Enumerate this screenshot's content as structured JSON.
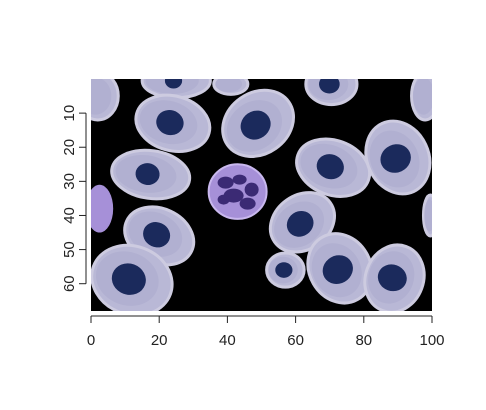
{
  "chart_data": {
    "type": "image",
    "title": "",
    "xlabel": "",
    "ylabel": "",
    "xlim": [
      0,
      100
    ],
    "ylim": [
      0,
      68
    ],
    "y_reversed": true,
    "x_ticks": [
      "0",
      "20",
      "40",
      "60",
      "80",
      "100"
    ],
    "y_ticks": [
      "10",
      "20",
      "30",
      "40",
      "50",
      "60"
    ],
    "colors": {
      "background": "#000000",
      "cell_fill": "#b9b8d6",
      "cell_edge": "#cdcbe0",
      "nucleus": "#1b2a5c",
      "leukocyte_fill": "#a690d8",
      "leukocyte_nucleus": "#3b2a74",
      "axis": "#222222"
    },
    "image_content": {
      "description_type": "blood smear micrograph",
      "cells": [
        {
          "x": 25,
          "y": 0.5,
          "rx": 10,
          "ry": 5,
          "rot": 0,
          "nucleus": true
        },
        {
          "x": 41,
          "y": 1.5,
          "rx": 5,
          "ry": 3,
          "rot": 0,
          "nucleus": false
        },
        {
          "x": 70.5,
          "y": 1.5,
          "rx": 7.5,
          "ry": 6,
          "rot": 0,
          "nucleus": true
        },
        {
          "x": 98,
          "y": 5,
          "rx": 4,
          "ry": 7,
          "rot": 0,
          "nucleus": false
        },
        {
          "x": 2,
          "y": 5,
          "rx": 6,
          "ry": 7,
          "rot": 0,
          "nucleus": false
        },
        {
          "x": 24,
          "y": 13,
          "rx": 11,
          "ry": 8,
          "rot": 15,
          "nucleus": true
        },
        {
          "x": 49,
          "y": 13,
          "rx": 11,
          "ry": 9,
          "rot": -35,
          "nucleus": true
        },
        {
          "x": 17.5,
          "y": 28,
          "rx": 11.5,
          "ry": 7,
          "rot": 8,
          "nucleus": true
        },
        {
          "x": 71,
          "y": 26,
          "rx": 11,
          "ry": 8,
          "rot": 20,
          "nucleus": true
        },
        {
          "x": 90,
          "y": 23,
          "rx": 9,
          "ry": 11,
          "rot": -25,
          "nucleus": true
        },
        {
          "x": 62,
          "y": 42,
          "rx": 10,
          "ry": 8,
          "rot": -35,
          "nucleus": true
        },
        {
          "x": 20,
          "y": 46,
          "rx": 10.5,
          "ry": 8,
          "rot": 25,
          "nucleus": true
        },
        {
          "x": 57,
          "y": 56,
          "rx": 5.5,
          "ry": 5,
          "rot": 0,
          "nucleus": true
        },
        {
          "x": 73,
          "y": 55.5,
          "rx": 9,
          "ry": 10.5,
          "rot": -30,
          "nucleus": true
        },
        {
          "x": 89,
          "y": 58.5,
          "rx": 8.5,
          "ry": 10,
          "rot": 20,
          "nucleus": true
        },
        {
          "x": 12,
          "y": 59,
          "rx": 12,
          "ry": 10,
          "rot": 20,
          "nucleus": true
        },
        {
          "x": 99.5,
          "y": 40,
          "rx": 2,
          "ry": 6,
          "rot": 0,
          "nucleus": false
        }
      ],
      "leukocyte": {
        "x": 43,
        "y": 33,
        "rx": 8.5,
        "ry": 8
      },
      "platelet": {
        "x": 2.5,
        "y": 38,
        "rx": 4,
        "ry": 7
      }
    }
  }
}
